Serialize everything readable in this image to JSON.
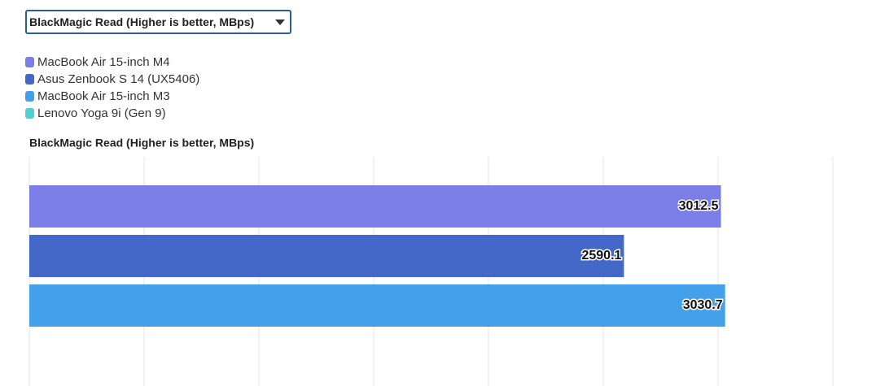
{
  "dropdown": {
    "selected": "BlackMagic Read (Higher is better, MBps)"
  },
  "chart_data": {
    "type": "bar",
    "orientation": "horizontal",
    "title": "BlackMagic Read (Higher is better, MBps)",
    "series": [
      {
        "name": "MacBook Air 15-inch M4",
        "color": "#7a7ee6",
        "values": [
          3012.5
        ]
      },
      {
        "name": "Asus Zenbook S 14 (UX5406)",
        "color": "#4468c8",
        "values": [
          2590.1
        ]
      },
      {
        "name": "MacBook Air 15-inch M3",
        "color": "#44a0e8",
        "values": [
          3030.7
        ]
      },
      {
        "name": "Lenovo Yoga 9i (Gen 9)",
        "color": "#4fd1d1",
        "values": [
          null
        ]
      }
    ],
    "xlim": [
      0,
      3500
    ],
    "xticks": [
      0,
      500,
      1000,
      1500,
      2000,
      2500,
      3000,
      3500
    ],
    "grid": true
  }
}
